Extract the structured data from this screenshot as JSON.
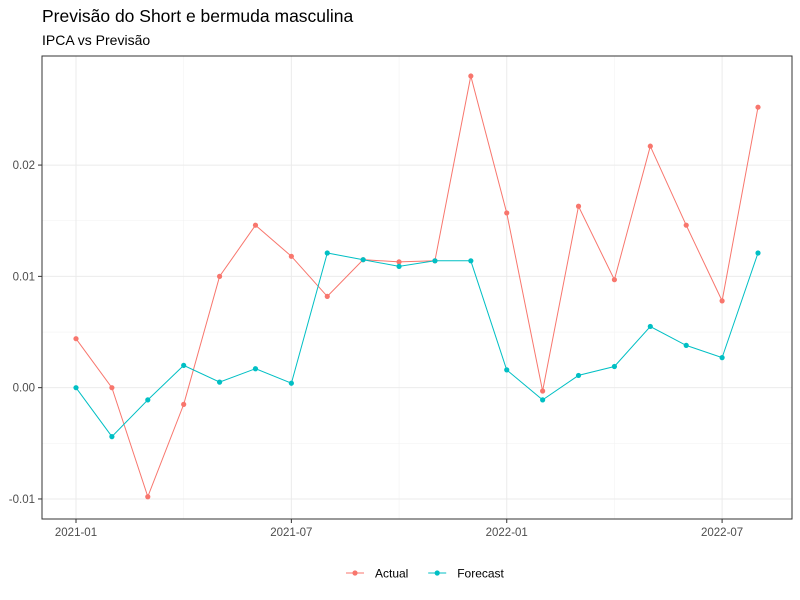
{
  "chart_data": {
    "type": "line",
    "title": "Previsão do Short e bermuda masculina",
    "subtitle": "IPCA vs Previsão",
    "xlabel": "",
    "ylabel": "",
    "x": [
      "2021-01",
      "2021-02",
      "2021-03",
      "2021-04",
      "2021-05",
      "2021-06",
      "2021-07",
      "2021-08",
      "2021-09",
      "2021-10",
      "2021-11",
      "2021-12",
      "2022-01",
      "2022-02",
      "2022-03",
      "2022-04",
      "2022-05",
      "2022-06",
      "2022-07",
      "2022-08"
    ],
    "x_ticks": [
      "2021-01",
      "2021-07",
      "2022-01",
      "2022-07"
    ],
    "y_ticks": [
      -0.01,
      0.0,
      0.01,
      0.02
    ],
    "y_tick_labels": [
      "-0.01",
      "0.00",
      "0.01",
      "0.02"
    ],
    "ylim": [
      -0.0118,
      0.0298
    ],
    "grid": true,
    "legend_position": "bottom",
    "series": [
      {
        "name": "Actual",
        "color": "#F8766D",
        "values": [
          0.0044,
          0.0,
          -0.0098,
          -0.0015,
          0.01,
          0.0146,
          0.0118,
          0.0082,
          0.0115,
          0.0113,
          0.0114,
          0.028,
          0.0157,
          -0.0003,
          0.0163,
          0.0097,
          0.0217,
          0.0146,
          0.0078,
          0.0252
        ]
      },
      {
        "name": "Forecast",
        "color": "#00BFC4",
        "values": [
          0.0,
          -0.0044,
          -0.0011,
          0.002,
          0.0005,
          0.0017,
          0.0004,
          0.0121,
          0.0115,
          0.0109,
          0.0114,
          0.0114,
          0.0016,
          -0.0011,
          0.0011,
          0.0019,
          0.0055,
          0.0038,
          0.0027,
          0.0121
        ]
      }
    ]
  }
}
